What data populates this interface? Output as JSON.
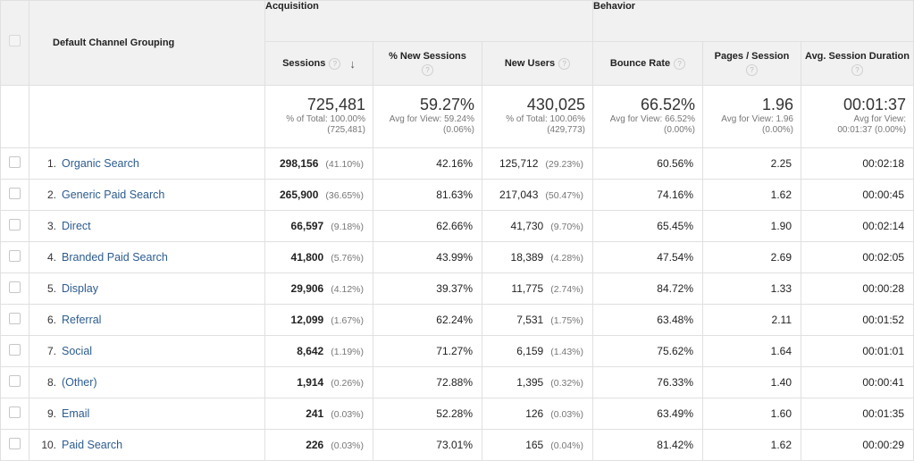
{
  "header": {
    "dimension": "Default Channel Grouping",
    "acquisition": "Acquisition",
    "behavior": "Behavior",
    "columns": {
      "sessions": "Sessions",
      "new_sessions": "% New Sessions",
      "new_users": "New Users",
      "bounce_rate": "Bounce Rate",
      "pages_session": "Pages / Session",
      "avg_duration": "Avg. Session Duration"
    },
    "help_glyph": "?",
    "sort_glyph": "↓"
  },
  "totals": {
    "sessions": {
      "value": "725,481",
      "line1": "% of Total: 100.00%",
      "line2": "(725,481)"
    },
    "new_sessions": {
      "value": "59.27%",
      "line1": "Avg for View: 59.24%",
      "line2": "(0.06%)"
    },
    "new_users": {
      "value": "430,025",
      "line1": "% of Total: 100.06%",
      "line2": "(429,773)"
    },
    "bounce_rate": {
      "value": "66.52%",
      "line1": "Avg for View: 66.52%",
      "line2": "(0.00%)"
    },
    "pages_session": {
      "value": "1.96",
      "line1": "Avg for View: 1.96",
      "line2": "(0.00%)"
    },
    "avg_duration": {
      "value": "00:01:37",
      "line1": "Avg for View:",
      "line2": "00:01:37 (0.00%)"
    }
  },
  "rows": [
    {
      "idx": "1.",
      "name": "Organic Search",
      "sessions": "298,156",
      "sessions_pct": "(41.10%)",
      "new_sessions": "42.16%",
      "new_users": "125,712",
      "new_users_pct": "(29.23%)",
      "bounce_rate": "60.56%",
      "pages_session": "2.25",
      "avg_duration": "00:02:18"
    },
    {
      "idx": "2.",
      "name": "Generic Paid Search",
      "sessions": "265,900",
      "sessions_pct": "(36.65%)",
      "new_sessions": "81.63%",
      "new_users": "217,043",
      "new_users_pct": "(50.47%)",
      "bounce_rate": "74.16%",
      "pages_session": "1.62",
      "avg_duration": "00:00:45"
    },
    {
      "idx": "3.",
      "name": "Direct",
      "sessions": "66,597",
      "sessions_pct": "(9.18%)",
      "new_sessions": "62.66%",
      "new_users": "41,730",
      "new_users_pct": "(9.70%)",
      "bounce_rate": "65.45%",
      "pages_session": "1.90",
      "avg_duration": "00:02:14"
    },
    {
      "idx": "4.",
      "name": "Branded Paid Search",
      "sessions": "41,800",
      "sessions_pct": "(5.76%)",
      "new_sessions": "43.99%",
      "new_users": "18,389",
      "new_users_pct": "(4.28%)",
      "bounce_rate": "47.54%",
      "pages_session": "2.69",
      "avg_duration": "00:02:05"
    },
    {
      "idx": "5.",
      "name": "Display",
      "sessions": "29,906",
      "sessions_pct": "(4.12%)",
      "new_sessions": "39.37%",
      "new_users": "11,775",
      "new_users_pct": "(2.74%)",
      "bounce_rate": "84.72%",
      "pages_session": "1.33",
      "avg_duration": "00:00:28"
    },
    {
      "idx": "6.",
      "name": "Referral",
      "sessions": "12,099",
      "sessions_pct": "(1.67%)",
      "new_sessions": "62.24%",
      "new_users": "7,531",
      "new_users_pct": "(1.75%)",
      "bounce_rate": "63.48%",
      "pages_session": "2.11",
      "avg_duration": "00:01:52"
    },
    {
      "idx": "7.",
      "name": "Social",
      "sessions": "8,642",
      "sessions_pct": "(1.19%)",
      "new_sessions": "71.27%",
      "new_users": "6,159",
      "new_users_pct": "(1.43%)",
      "bounce_rate": "75.62%",
      "pages_session": "1.64",
      "avg_duration": "00:01:01"
    },
    {
      "idx": "8.",
      "name": "(Other)",
      "sessions": "1,914",
      "sessions_pct": "(0.26%)",
      "new_sessions": "72.88%",
      "new_users": "1,395",
      "new_users_pct": "(0.32%)",
      "bounce_rate": "76.33%",
      "pages_session": "1.40",
      "avg_duration": "00:00:41"
    },
    {
      "idx": "9.",
      "name": "Email",
      "sessions": "241",
      "sessions_pct": "(0.03%)",
      "new_sessions": "52.28%",
      "new_users": "126",
      "new_users_pct": "(0.03%)",
      "bounce_rate": "63.49%",
      "pages_session": "1.60",
      "avg_duration": "00:01:35"
    },
    {
      "idx": "10.",
      "name": "Paid Search",
      "sessions": "226",
      "sessions_pct": "(0.03%)",
      "new_sessions": "73.01%",
      "new_users": "165",
      "new_users_pct": "(0.04%)",
      "bounce_rate": "81.42%",
      "pages_session": "1.62",
      "avg_duration": "00:00:29"
    }
  ],
  "colors": {
    "link": "#2c5c8f",
    "header_bg": "#f1f1f1",
    "border": "#e0e0e0",
    "muted": "#777777"
  }
}
